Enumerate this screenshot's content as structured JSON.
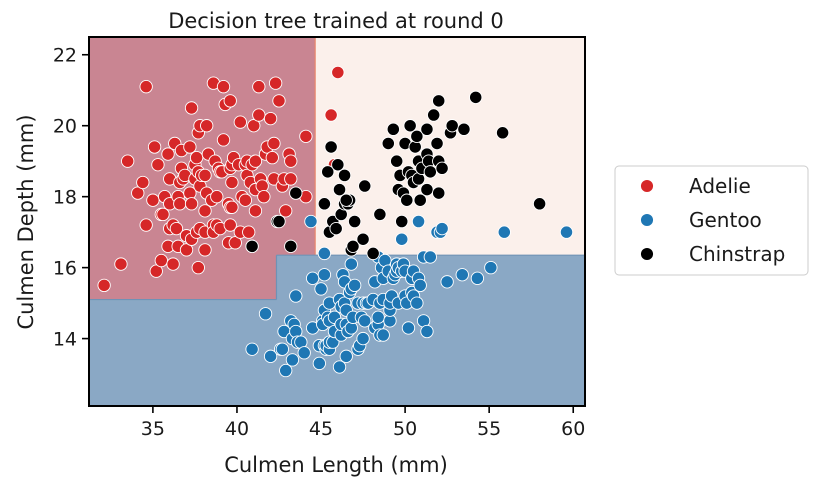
{
  "chart_data": {
    "type": "scatter",
    "title": "Decision tree trained at round 0",
    "xlabel": "Culmen Length (mm)",
    "ylabel": "Culmen Depth (mm)",
    "xlim": [
      31.2,
      60.7
    ],
    "ylim": [
      12.1,
      22.5
    ],
    "xticks": [
      35,
      40,
      45,
      50,
      55,
      60
    ],
    "yticks": [
      14,
      16,
      18,
      20,
      22
    ],
    "grid": false,
    "legend_position": "right",
    "colors": {
      "Adelie": "#d62728",
      "Gentoo": "#1f77b4",
      "Chinstrap": "#000000",
      "region_adelie": "#c98592",
      "region_chinstrap": "#fbf0eb",
      "region_gentoo": "#8aa8c5"
    },
    "decision_regions": [
      {
        "class": "Adelie",
        "x": [
          31.2,
          44.65
        ],
        "y": [
          15.1,
          22.5
        ]
      },
      {
        "class": "Adelie",
        "x": [
          31.2,
          42.35
        ],
        "y": [
          15.1,
          16.35
        ]
      },
      {
        "class": "Chinstrap",
        "x": [
          44.65,
          60.7
        ],
        "y": [
          16.35,
          22.5
        ]
      },
      {
        "class": "Gentoo",
        "x": [
          31.2,
          60.7
        ],
        "y": [
          12.1,
          15.1
        ]
      },
      {
        "class": "Gentoo",
        "x": [
          42.35,
          60.7
        ],
        "y": [
          15.1,
          16.35
        ]
      }
    ],
    "series": [
      {
        "name": "Adelie",
        "points": [
          [
            32.1,
            15.5
          ],
          [
            33.1,
            16.1
          ],
          [
            33.5,
            19.0
          ],
          [
            34.1,
            18.1
          ],
          [
            34.4,
            18.4
          ],
          [
            34.6,
            21.1
          ],
          [
            34.6,
            17.2
          ],
          [
            35.0,
            17.9
          ],
          [
            35.1,
            19.4
          ],
          [
            35.2,
            15.9
          ],
          [
            35.3,
            18.9
          ],
          [
            35.5,
            17.5
          ],
          [
            35.5,
            16.2
          ],
          [
            35.6,
            17.5
          ],
          [
            35.7,
            18.0
          ],
          [
            35.9,
            19.2
          ],
          [
            35.9,
            16.6
          ],
          [
            36.0,
            17.8
          ],
          [
            36.0,
            18.5
          ],
          [
            36.0,
            17.1
          ],
          [
            36.2,
            17.2
          ],
          [
            36.2,
            16.1
          ],
          [
            36.3,
            19.5
          ],
          [
            36.4,
            17.1
          ],
          [
            36.5,
            18.0
          ],
          [
            36.5,
            16.6
          ],
          [
            36.6,
            17.8
          ],
          [
            36.6,
            18.4
          ],
          [
            36.7,
            19.3
          ],
          [
            36.7,
            18.8
          ],
          [
            36.8,
            18.5
          ],
          [
            36.9,
            18.6
          ],
          [
            37.0,
            16.9
          ],
          [
            37.0,
            16.5
          ],
          [
            37.2,
            18.1
          ],
          [
            37.2,
            19.4
          ],
          [
            37.3,
            20.5
          ],
          [
            37.3,
            17.8
          ],
          [
            37.3,
            16.8
          ],
          [
            37.5,
            18.9
          ],
          [
            37.5,
            18.5
          ],
          [
            37.6,
            19.1
          ],
          [
            37.6,
            17.0
          ],
          [
            37.7,
            18.7
          ],
          [
            37.7,
            19.8
          ],
          [
            37.7,
            16.0
          ],
          [
            37.8,
            18.3
          ],
          [
            37.8,
            17.1
          ],
          [
            37.8,
            20.0
          ],
          [
            37.9,
            18.6
          ],
          [
            38.1,
            18.6
          ],
          [
            38.1,
            17.0
          ],
          [
            38.1,
            16.5
          ],
          [
            38.1,
            17.6
          ],
          [
            38.2,
            18.1
          ],
          [
            38.2,
            20.0
          ],
          [
            38.3,
            19.2
          ],
          [
            38.5,
            17.9
          ],
          [
            38.6,
            21.2
          ],
          [
            38.6,
            17.2
          ],
          [
            38.6,
            17.0
          ],
          [
            38.7,
            19.0
          ],
          [
            38.8,
            17.2
          ],
          [
            38.8,
            18.0
          ],
          [
            38.9,
            18.8
          ],
          [
            39.0,
            17.1
          ],
          [
            39.0,
            18.7
          ],
          [
            39.1,
            18.7
          ],
          [
            39.2,
            19.6
          ],
          [
            39.2,
            21.1
          ],
          [
            39.3,
            20.6
          ],
          [
            39.5,
            16.7
          ],
          [
            39.5,
            17.8
          ],
          [
            39.6,
            17.7
          ],
          [
            39.6,
            17.2
          ],
          [
            39.6,
            18.8
          ],
          [
            39.6,
            20.7
          ],
          [
            39.7,
            18.4
          ],
          [
            39.7,
            18.9
          ],
          [
            39.7,
            17.7
          ],
          [
            39.8,
            19.1
          ],
          [
            39.9,
            16.7
          ],
          [
            40.1,
            18.9
          ],
          [
            40.2,
            17.0
          ],
          [
            40.2,
            20.1
          ],
          [
            40.3,
            18.0
          ],
          [
            40.5,
            17.9
          ],
          [
            40.5,
            18.9
          ],
          [
            40.6,
            18.6
          ],
          [
            40.6,
            19.0
          ],
          [
            40.7,
            17.0
          ],
          [
            40.8,
            18.4
          ],
          [
            40.9,
            16.6
          ],
          [
            40.9,
            18.9
          ],
          [
            41.0,
            20.0
          ],
          [
            41.1,
            17.6
          ],
          [
            41.1,
            18.2
          ],
          [
            41.1,
            19.0
          ],
          [
            41.3,
            21.1
          ],
          [
            41.3,
            20.3
          ],
          [
            41.4,
            18.5
          ],
          [
            41.5,
            18.3
          ],
          [
            41.6,
            18.0
          ],
          [
            41.7,
            19.2
          ],
          [
            41.8,
            19.4
          ],
          [
            42.0,
            20.2
          ],
          [
            42.1,
            19.1
          ],
          [
            42.2,
            18.5
          ],
          [
            42.2,
            19.5
          ],
          [
            42.3,
            21.2
          ],
          [
            42.5,
            20.7
          ],
          [
            42.7,
            18.3
          ],
          [
            42.8,
            18.5
          ],
          [
            42.9,
            17.6
          ],
          [
            43.1,
            19.2
          ],
          [
            43.2,
            19.0
          ],
          [
            43.2,
            18.5
          ],
          [
            44.1,
            19.7
          ],
          [
            44.1,
            18.0
          ],
          [
            45.6,
            20.3
          ],
          [
            46.0,
            21.5
          ],
          [
            45.8,
            18.9
          ]
        ]
      },
      {
        "name": "Gentoo",
        "points": [
          [
            40.9,
            13.7
          ],
          [
            41.7,
            14.7
          ],
          [
            42.0,
            13.5
          ],
          [
            42.6,
            13.7
          ],
          [
            42.7,
            13.7
          ],
          [
            42.8,
            14.2
          ],
          [
            42.9,
            13.1
          ],
          [
            43.2,
            14.5
          ],
          [
            43.3,
            13.4
          ],
          [
            43.3,
            14.0
          ],
          [
            43.4,
            14.4
          ],
          [
            43.5,
            14.2
          ],
          [
            43.5,
            15.2
          ],
          [
            43.6,
            13.9
          ],
          [
            43.8,
            13.9
          ],
          [
            44.0,
            13.6
          ],
          [
            44.4,
            17.3
          ],
          [
            44.5,
            14.3
          ],
          [
            44.5,
            15.7
          ],
          [
            44.9,
            13.3
          ],
          [
            44.9,
            13.8
          ],
          [
            45.0,
            15.4
          ],
          [
            45.1,
            14.5
          ],
          [
            45.1,
            14.4
          ],
          [
            45.2,
            13.8
          ],
          [
            45.2,
            14.8
          ],
          [
            45.2,
            15.8
          ],
          [
            45.2,
            16.4
          ],
          [
            45.3,
            13.7
          ],
          [
            45.3,
            13.8
          ],
          [
            45.4,
            14.6
          ],
          [
            45.5,
            13.7
          ],
          [
            45.5,
            13.9
          ],
          [
            45.5,
            14.5
          ],
          [
            45.5,
            15.0
          ],
          [
            45.7,
            13.9
          ],
          [
            45.8,
            14.2
          ],
          [
            45.8,
            14.6
          ],
          [
            46.1,
            13.2
          ],
          [
            46.1,
            15.1
          ],
          [
            46.2,
            14.1
          ],
          [
            46.2,
            14.4
          ],
          [
            46.2,
            14.9
          ],
          [
            46.3,
            15.8
          ],
          [
            46.4,
            15.0
          ],
          [
            46.4,
            15.6
          ],
          [
            46.5,
            13.5
          ],
          [
            46.5,
            14.4
          ],
          [
            46.5,
            14.8
          ],
          [
            46.6,
            14.2
          ],
          [
            46.7,
            15.3
          ],
          [
            46.8,
            14.3
          ],
          [
            46.8,
            15.4
          ],
          [
            46.8,
            16.1
          ],
          [
            46.9,
            14.6
          ],
          [
            47.0,
            15.5
          ],
          [
            47.2,
            13.7
          ],
          [
            47.2,
            15.0
          ],
          [
            47.3,
            13.8
          ],
          [
            47.4,
            14.6
          ],
          [
            47.5,
            14.0
          ],
          [
            47.5,
            15.0
          ],
          [
            47.6,
            14.5
          ],
          [
            47.7,
            15.0
          ],
          [
            47.8,
            15.0
          ],
          [
            48.1,
            15.1
          ],
          [
            48.2,
            14.3
          ],
          [
            48.2,
            15.6
          ],
          [
            48.4,
            14.4
          ],
          [
            48.4,
            14.6
          ],
          [
            48.4,
            16.3
          ],
          [
            48.5,
            14.1
          ],
          [
            48.5,
            15.0
          ],
          [
            48.6,
            16.0
          ],
          [
            48.7,
            14.1
          ],
          [
            48.7,
            15.1
          ],
          [
            48.7,
            15.7
          ],
          [
            48.8,
            16.2
          ],
          [
            49.0,
            15.9
          ],
          [
            49.1,
            14.5
          ],
          [
            49.1,
            14.8
          ],
          [
            49.1,
            15.0
          ],
          [
            49.2,
            15.2
          ],
          [
            49.3,
            15.7
          ],
          [
            49.4,
            15.8
          ],
          [
            49.5,
            16.1
          ],
          [
            49.5,
            15.9
          ],
          [
            49.6,
            15.0
          ],
          [
            49.6,
            16.0
          ],
          [
            49.8,
            15.9
          ],
          [
            49.8,
            16.8
          ],
          [
            49.9,
            16.1
          ],
          [
            50.0,
            15.2
          ],
          [
            50.0,
            15.9
          ],
          [
            50.1,
            15.0
          ],
          [
            50.2,
            14.3
          ],
          [
            50.4,
            15.3
          ],
          [
            50.4,
            15.7
          ],
          [
            50.5,
            15.2
          ],
          [
            50.5,
            15.9
          ],
          [
            50.7,
            15.0
          ],
          [
            50.8,
            15.7
          ],
          [
            50.8,
            17.3
          ],
          [
            50.9,
            15.5
          ],
          [
            51.1,
            14.5
          ],
          [
            51.1,
            16.3
          ],
          [
            51.3,
            14.2
          ],
          [
            51.5,
            16.3
          ],
          [
            51.9,
            17.0
          ],
          [
            52.1,
            17.0
          ],
          [
            52.2,
            17.1
          ],
          [
            52.5,
            15.6
          ],
          [
            53.4,
            15.8
          ],
          [
            54.3,
            15.7
          ],
          [
            55.1,
            16.0
          ],
          [
            55.9,
            17.0
          ],
          [
            59.6,
            17.0
          ]
        ]
      },
      {
        "name": "Chinstrap",
        "points": [
          [
            40.9,
            16.6
          ],
          [
            42.4,
            17.3
          ],
          [
            42.5,
            17.3
          ],
          [
            43.2,
            16.6
          ],
          [
            43.5,
            18.1
          ],
          [
            45.2,
            17.8
          ],
          [
            45.4,
            18.7
          ],
          [
            45.5,
            17.0
          ],
          [
            45.6,
            19.4
          ],
          [
            45.7,
            17.3
          ],
          [
            45.9,
            17.1
          ],
          [
            46.0,
            18.9
          ],
          [
            46.1,
            18.2
          ],
          [
            46.2,
            17.5
          ],
          [
            46.4,
            18.6
          ],
          [
            46.4,
            17.8
          ],
          [
            46.6,
            17.8
          ],
          [
            46.7,
            17.9
          ],
          [
            46.8,
            16.5
          ],
          [
            46.9,
            16.6
          ],
          [
            47.0,
            17.3
          ],
          [
            47.5,
            16.8
          ],
          [
            48.1,
            16.4
          ],
          [
            49.0,
            19.5
          ],
          [
            49.3,
            19.9
          ],
          [
            49.5,
            19.0
          ],
          [
            49.6,
            18.2
          ],
          [
            49.7,
            18.6
          ],
          [
            49.8,
            17.3
          ],
          [
            49.9,
            18.1
          ],
          [
            50.0,
            19.5
          ],
          [
            50.1,
            17.9
          ],
          [
            50.2,
            18.7
          ],
          [
            50.3,
            20.0
          ],
          [
            50.4,
            18.6
          ],
          [
            50.5,
            18.4
          ],
          [
            50.6,
            19.4
          ],
          [
            50.7,
            19.7
          ],
          [
            50.8,
            18.5
          ],
          [
            50.8,
            19.0
          ],
          [
            50.9,
            17.9
          ],
          [
            51.0,
            18.8
          ],
          [
            51.3,
            19.2
          ],
          [
            51.3,
            19.9
          ],
          [
            51.3,
            18.2
          ],
          [
            51.4,
            19.0
          ],
          [
            51.5,
            18.7
          ],
          [
            51.7,
            20.3
          ],
          [
            51.9,
            19.5
          ],
          [
            52.0,
            18.1
          ],
          [
            52.0,
            19.0
          ],
          [
            52.0,
            20.7
          ],
          [
            52.2,
            18.8
          ],
          [
            52.7,
            19.8
          ],
          [
            52.8,
            20.0
          ],
          [
            53.5,
            19.9
          ],
          [
            54.2,
            20.8
          ],
          [
            55.8,
            19.8
          ],
          [
            58.0,
            17.8
          ],
          [
            48.5,
            17.5
          ],
          [
            47.6,
            18.3
          ],
          [
            46.5,
            17.9
          ]
        ]
      }
    ]
  }
}
